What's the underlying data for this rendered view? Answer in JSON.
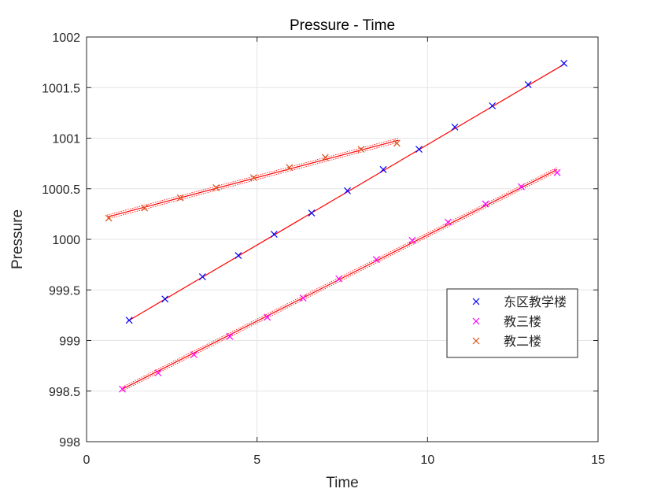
{
  "chart_data": {
    "type": "scatter",
    "title": "Pressure - Time",
    "xlabel": "Time",
    "ylabel": "Pressure",
    "xlim": [
      0,
      15
    ],
    "ylim": [
      998,
      1002
    ],
    "xticks": [
      0,
      5,
      10,
      15
    ],
    "yticks": [
      998,
      998.5,
      999,
      999.5,
      1000,
      1000.5,
      1001,
      1001.5,
      1002
    ],
    "xtick_labels": [
      "0",
      "5",
      "10",
      "15"
    ],
    "ytick_labels": [
      "998",
      "998.5",
      "999",
      "999.5",
      "1000",
      "1000.5",
      "1001",
      "1001.5",
      "1002"
    ],
    "grid": true,
    "legend_position": "right-middle",
    "series": [
      {
        "name": "东区教学楼",
        "color": "#0000ff",
        "marker": "x",
        "x": [
          1.25,
          2.3,
          3.4,
          4.45,
          5.5,
          6.6,
          7.65,
          8.7,
          9.75,
          10.8,
          11.9,
          12.95,
          14.0
        ],
        "y": [
          999.2,
          999.41,
          999.63,
          999.84,
          1000.05,
          1000.26,
          1000.48,
          1000.69,
          1000.89,
          1001.11,
          1001.32,
          1001.53,
          1001.74
        ],
        "fit": {
          "x": [
            1.2,
            14.0
          ],
          "y": [
            999.19,
            1001.73
          ],
          "band": 0.0
        }
      },
      {
        "name": "教三楼",
        "color": "#ff00ff",
        "marker": "x",
        "x": [
          1.05,
          2.1,
          3.15,
          4.2,
          5.3,
          6.35,
          7.4,
          8.5,
          9.55,
          10.6,
          11.7,
          12.75,
          13.8
        ],
        "y": [
          998.52,
          998.68,
          998.86,
          999.04,
          999.23,
          999.42,
          999.61,
          999.8,
          999.99,
          1000.17,
          1000.35,
          1000.52,
          1000.66
        ],
        "fit": {
          "x": [
            1.05,
            13.8
          ],
          "y": [
            998.52,
            1000.69
          ],
          "band": 0.02
        }
      },
      {
        "name": "教二楼",
        "color": "#d95319",
        "marker": "x",
        "x": [
          0.65,
          1.7,
          2.75,
          3.8,
          4.9,
          5.95,
          7.0,
          8.05,
          9.1
        ],
        "y": [
          1000.21,
          1000.31,
          1000.41,
          1000.51,
          1000.61,
          1000.71,
          1000.81,
          1000.89,
          1000.95
        ],
        "fit": {
          "x": [
            0.6,
            9.15
          ],
          "y": [
            1000.22,
            1000.98
          ],
          "band": 0.02
        }
      }
    ]
  },
  "colors": {
    "fit_line": "#ff0000",
    "grid": "#e5e5e5",
    "axis": "#262626"
  }
}
